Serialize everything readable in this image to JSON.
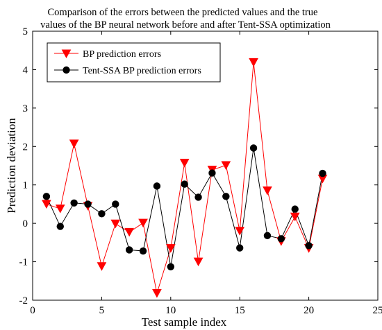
{
  "chart_data": {
    "type": "line",
    "title_lines": [
      "Comparison of the errors between the predicted values and the true",
      "values of the BP neural network before and after Tent-SSA optimization"
    ],
    "xlabel": "Test sample index",
    "ylabel": "Prediction deviation",
    "xlim": [
      0,
      25
    ],
    "ylim": [
      -2,
      5
    ],
    "xticks": [
      0,
      5,
      10,
      15,
      20,
      25
    ],
    "yticks": [
      -2,
      -1,
      0,
      1,
      2,
      3,
      4,
      5
    ],
    "grid": false,
    "legend_position": "top-left",
    "x": [
      1,
      2,
      3,
      4,
      5,
      6,
      7,
      8,
      9,
      10,
      11,
      12,
      13,
      14,
      15,
      16,
      17,
      18,
      19,
      20,
      21
    ],
    "series": [
      {
        "name": "BP prediction errors",
        "color": "#ff0000",
        "marker": "triangle-down",
        "values": [
          0.5,
          0.38,
          2.07,
          0.45,
          -1.12,
          -0.01,
          -0.23,
          0.01,
          -1.82,
          -0.65,
          1.57,
          -1.0,
          1.39,
          1.51,
          -0.2,
          4.19,
          0.85,
          -0.47,
          0.17,
          -0.65,
          1.16
        ]
      },
      {
        "name": "Tent-SSA BP prediction errors",
        "color": "#000000",
        "marker": "circle",
        "values": [
          0.7,
          -0.08,
          0.53,
          0.5,
          0.25,
          0.5,
          -0.69,
          -0.72,
          0.97,
          -1.13,
          1.02,
          0.68,
          1.31,
          0.7,
          -0.64,
          1.96,
          -0.32,
          -0.4,
          0.37,
          -0.58,
          1.3
        ]
      }
    ]
  }
}
